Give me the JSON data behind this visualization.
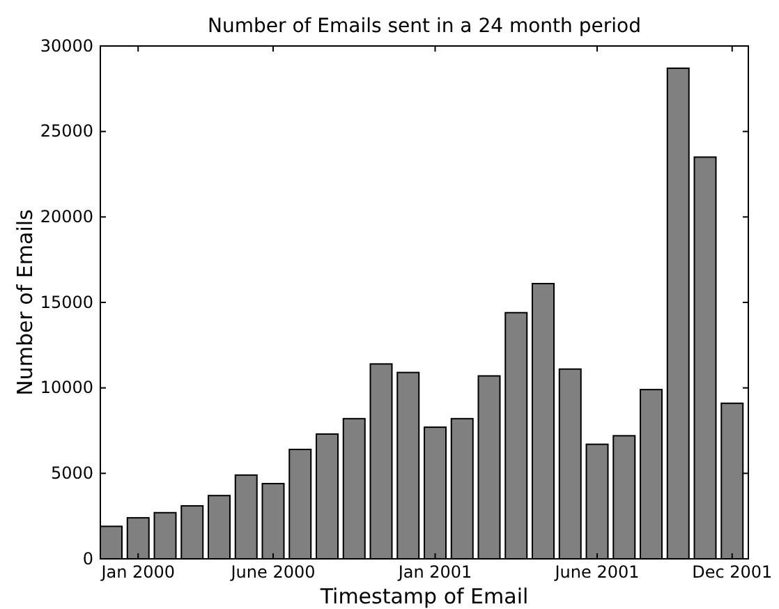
{
  "chart_data": {
    "type": "bar",
    "title": "Number of Emails sent in a 24 month period",
    "xlabel": "Timestamp of Email",
    "ylabel": "Number of Emails",
    "categories": [
      null,
      "Jan 2000",
      null,
      null,
      null,
      null,
      "June 2000",
      null,
      null,
      null,
      null,
      null,
      "Jan 2001",
      null,
      null,
      null,
      null,
      null,
      "June 2001",
      null,
      null,
      null,
      null,
      "Dec 2001"
    ],
    "values": [
      1900,
      2400,
      2700,
      3100,
      3700,
      4900,
      4400,
      6400,
      7300,
      8200,
      11400,
      10900,
      7700,
      8200,
      10700,
      14400,
      16100,
      11100,
      6700,
      7200,
      9900,
      28700,
      23500,
      9100
    ],
    "color": "#808080",
    "ylim": [
      0,
      30000
    ],
    "yticks": [
      0,
      5000,
      10000,
      15000,
      20000,
      25000,
      30000
    ],
    "grid": false
  }
}
